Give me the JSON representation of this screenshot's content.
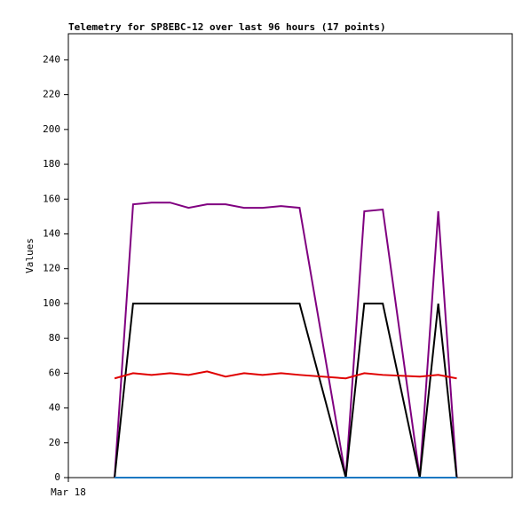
{
  "chart_data": {
    "type": "line",
    "title": "Telemetry for SP8EBC-12 over last 96 hours (17 points)",
    "y_label": "Values",
    "x": [
      10,
      14,
      18,
      22,
      26,
      30,
      34,
      38,
      42,
      46,
      50,
      60,
      64,
      68,
      76,
      80,
      84
    ],
    "xlim": [
      0,
      96
    ],
    "xticks": [
      {
        "value": 0,
        "label": "Mar 18"
      }
    ],
    "ylim": [
      0,
      255
    ],
    "yticks": [
      0,
      20,
      40,
      60,
      80,
      100,
      120,
      140,
      160,
      180,
      200,
      220,
      240
    ],
    "grid": false,
    "series": [
      {
        "color": "#800080",
        "values": [
          0,
          157,
          158,
          158,
          155,
          157,
          157,
          155,
          155,
          156,
          155,
          0,
          153,
          154,
          0,
          153,
          0
        ]
      },
      {
        "color": "#000000",
        "values": [
          0,
          100,
          100,
          100,
          100,
          100,
          100,
          100,
          100,
          100,
          100,
          0,
          100,
          100,
          0,
          100,
          0
        ]
      },
      {
        "color": "#e00000",
        "values": [
          57,
          60,
          59,
          60,
          59,
          61,
          58,
          60,
          59,
          60,
          59,
          57,
          60,
          59,
          58,
          59,
          57
        ]
      },
      {
        "color": "#1a78c2",
        "values": [
          0,
          0,
          0,
          0,
          0,
          0,
          0,
          0,
          0,
          0,
          0,
          0,
          0,
          0,
          0,
          0,
          0
        ]
      }
    ]
  }
}
